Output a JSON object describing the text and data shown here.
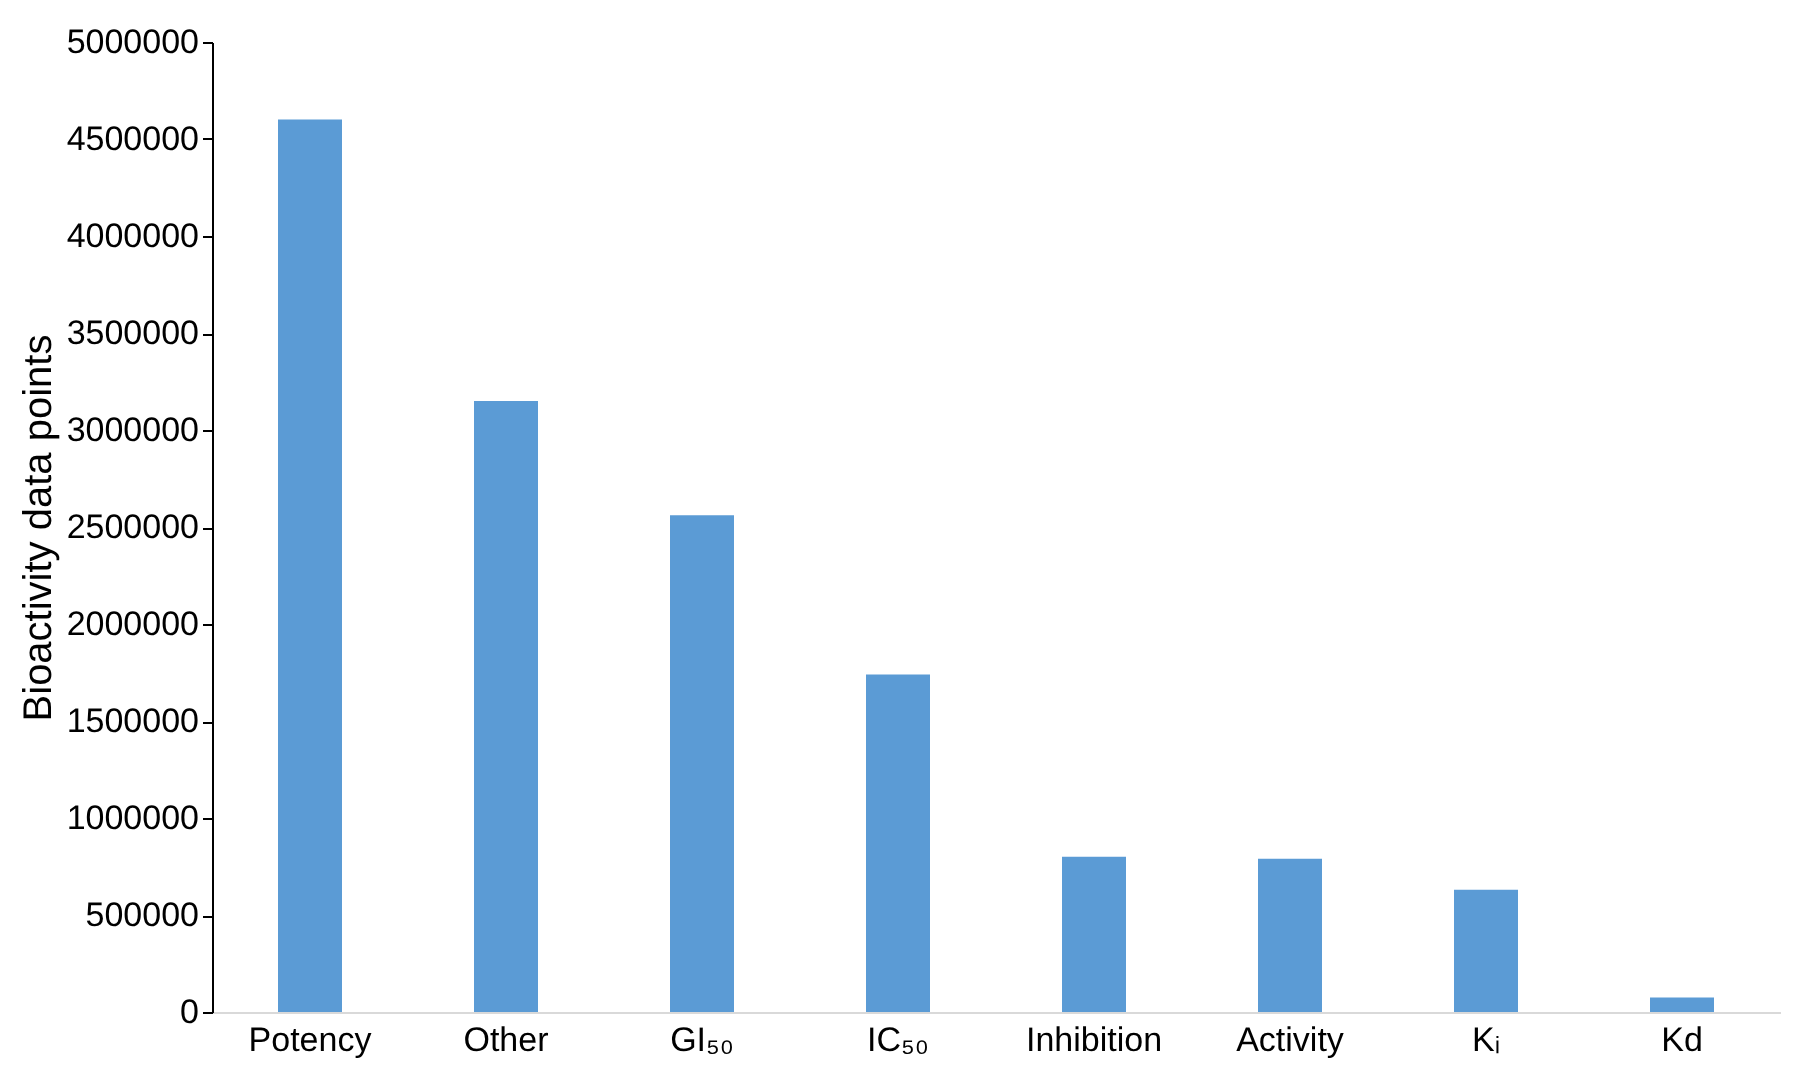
{
  "chart_data": {
    "type": "bar",
    "ylabel": "Bioactivity data points",
    "categories": [
      "Potency",
      "Other",
      "GI₅₀",
      "IC₅₀",
      "Inhibition",
      "Activity",
      "Kᵢ",
      "Kd"
    ],
    "values": [
      4600000,
      3150000,
      2560000,
      1740000,
      800000,
      790000,
      630000,
      75000
    ],
    "color": "#5b9bd5",
    "ylim": [
      0,
      5000000
    ],
    "yticks": [
      0,
      500000,
      1000000,
      1500000,
      2000000,
      2500000,
      3000000,
      3500000,
      4000000,
      4500000,
      5000000
    ],
    "grid": false
  }
}
